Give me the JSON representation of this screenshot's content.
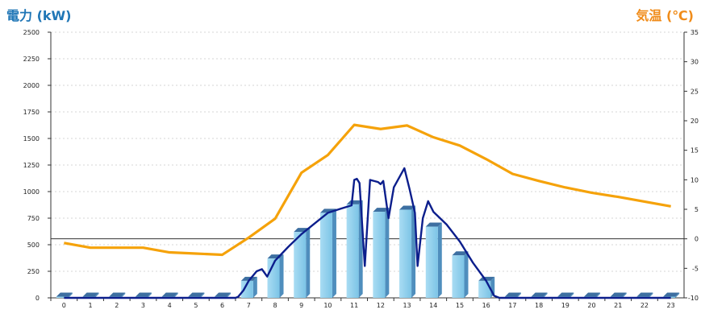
{
  "chart_data": {
    "type": "bar+line",
    "left_axis": {
      "label": "電力 (kW)",
      "ylim": [
        0,
        2500
      ],
      "ticks": [
        0,
        250,
        500,
        750,
        1000,
        1250,
        1500,
        1750,
        2000,
        2250,
        2500
      ]
    },
    "right_axis": {
      "label": "気温 (℃)",
      "ylim": [
        -10,
        35
      ],
      "ticks": [
        -10,
        -5,
        0,
        5,
        10,
        15,
        20,
        25,
        30,
        35
      ]
    },
    "categories": [
      "0",
      "1",
      "2",
      "3",
      "4",
      "5",
      "6",
      "7",
      "8",
      "9",
      "10",
      "11",
      "12",
      "13",
      "14",
      "15",
      "16",
      "17",
      "18",
      "19",
      "20",
      "21",
      "22",
      "23"
    ],
    "bars": {
      "axis": "left",
      "values": [
        0,
        0,
        0,
        0,
        0,
        0,
        0,
        160,
        370,
        620,
        800,
        880,
        810,
        830,
        670,
        400,
        160,
        0,
        0,
        0,
        0,
        0,
        0,
        0
      ]
    },
    "power_line": {
      "axis": "left",
      "points": [
        [
          0,
          0
        ],
        [
          6.5,
          0
        ],
        [
          6.6,
          10
        ],
        [
          6.8,
          70
        ],
        [
          7.0,
          160
        ],
        [
          7.3,
          250
        ],
        [
          7.5,
          270
        ],
        [
          7.7,
          200
        ],
        [
          8.0,
          350
        ],
        [
          8.5,
          480
        ],
        [
          9.0,
          600
        ],
        [
          9.5,
          700
        ],
        [
          10.0,
          800
        ],
        [
          10.5,
          840
        ],
        [
          10.9,
          870
        ],
        [
          11.0,
          1110
        ],
        [
          11.1,
          1120
        ],
        [
          11.2,
          1080
        ],
        [
          11.4,
          300
        ],
        [
          11.6,
          1110
        ],
        [
          11.9,
          1090
        ],
        [
          12.0,
          1070
        ],
        [
          12.1,
          1100
        ],
        [
          12.3,
          750
        ],
        [
          12.5,
          1040
        ],
        [
          12.9,
          1220
        ],
        [
          13.1,
          1020
        ],
        [
          13.3,
          800
        ],
        [
          13.4,
          300
        ],
        [
          13.6,
          750
        ],
        [
          13.8,
          910
        ],
        [
          14.0,
          810
        ],
        [
          14.5,
          690
        ],
        [
          15.0,
          530
        ],
        [
          15.5,
          330
        ],
        [
          16.0,
          160
        ],
        [
          16.3,
          20
        ],
        [
          16.5,
          0
        ],
        [
          23,
          0
        ]
      ]
    },
    "temperature_line": {
      "axis": "right",
      "values": [
        -0.7,
        -1.5,
        -1.5,
        -1.5,
        -2.3,
        -2.5,
        -2.7,
        0.2,
        3.4,
        11.2,
        14.2,
        19.3,
        18.6,
        19.2,
        17.2,
        15.8,
        13.5,
        11.0,
        9.8,
        8.7,
        7.8,
        7.1,
        6.3,
        5.5
      ]
    },
    "grid": true
  }
}
